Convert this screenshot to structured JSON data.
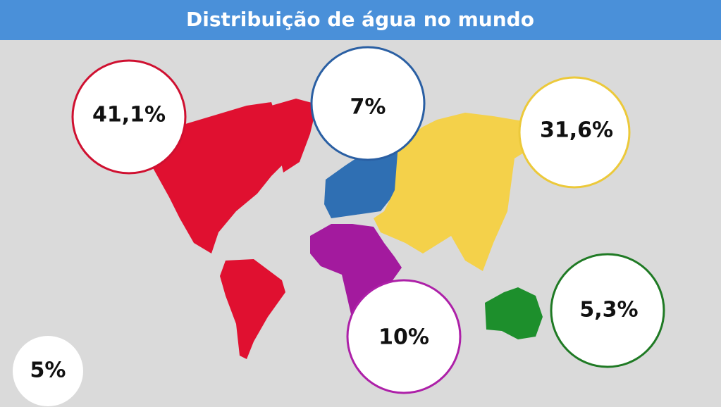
{
  "header": {
    "title": "Distribuição de água no mundo"
  },
  "regions": [
    {
      "label": "41,1%"
    },
    {
      "label": "7%"
    },
    {
      "label": "31,6%"
    },
    {
      "label": "10%"
    },
    {
      "label": "5,3%"
    },
    {
      "label": "5%"
    }
  ]
}
